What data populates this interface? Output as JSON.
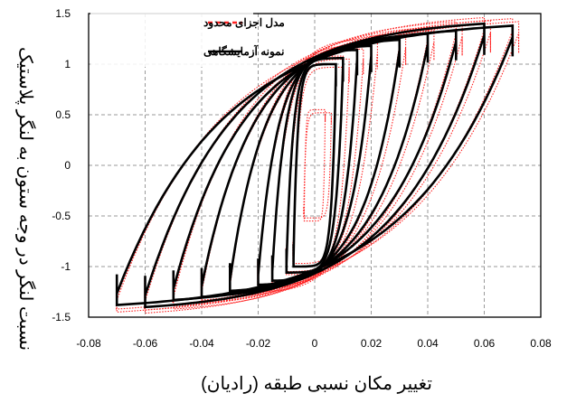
{
  "chart_data": {
    "type": "line",
    "title": "",
    "xlabel": "تغییر مکان نسبی طبقه (رادیان)",
    "ylabel": "نسبت لنگر در وجه ستون به لنگر پلاستیک",
    "xlim": [
      -0.08,
      0.08
    ],
    "ylim": [
      -1.5,
      1.5
    ],
    "x_ticks": [
      "-0.08",
      "-0.06",
      "-0.04",
      "-0.02",
      "0",
      "0.02",
      "0.04",
      "0.06",
      "0.08"
    ],
    "y_ticks": [
      "1.5",
      "1",
      "0.5",
      "0",
      "-0.5",
      "-1",
      "-1.5"
    ],
    "x_tick_values": [
      -0.08,
      -0.06,
      -0.04,
      -0.02,
      0,
      0.02,
      0.04,
      0.06,
      0.08
    ],
    "y_tick_values": [
      1.5,
      1,
      0.5,
      0,
      -0.5,
      -1,
      -1.5
    ],
    "grid": true,
    "legend_position": "top-left",
    "series": [
      {
        "name": "مدل اجزای محدود",
        "color": "#ff2020",
        "style": "dotted",
        "loops": [
          {
            "amp": 0.0037,
            "top": 0.55
          },
          {
            "amp": 0.0075,
            "top": 1.0
          },
          {
            "amp": 0.01,
            "top": 1.08
          },
          {
            "amp": 0.015,
            "top": 1.18
          },
          {
            "amp": 0.02,
            "top": 1.25
          },
          {
            "amp": 0.03,
            "top": 1.3
          },
          {
            "amp": 0.04,
            "top": 1.36
          },
          {
            "amp": 0.05,
            "top": 1.42
          },
          {
            "amp": 0.06,
            "top": 1.46
          },
          {
            "amp": 0.07,
            "top": 1.45
          }
        ]
      },
      {
        "name": "نمونه آزمایشگاهی",
        "color": "#000000",
        "style": "solid",
        "loops": [
          {
            "amp": 0.0075,
            "top": 1.0
          },
          {
            "amp": 0.01,
            "top": 1.06
          },
          {
            "amp": 0.015,
            "top": 1.14
          },
          {
            "amp": 0.02,
            "top": 1.18
          },
          {
            "amp": 0.03,
            "top": 1.24
          },
          {
            "amp": 0.04,
            "top": 1.3
          },
          {
            "amp": 0.05,
            "top": 1.33
          },
          {
            "amp": 0.06,
            "top": 1.4
          },
          {
            "amp": 0.07,
            "top": 1.38
          }
        ]
      }
    ]
  }
}
